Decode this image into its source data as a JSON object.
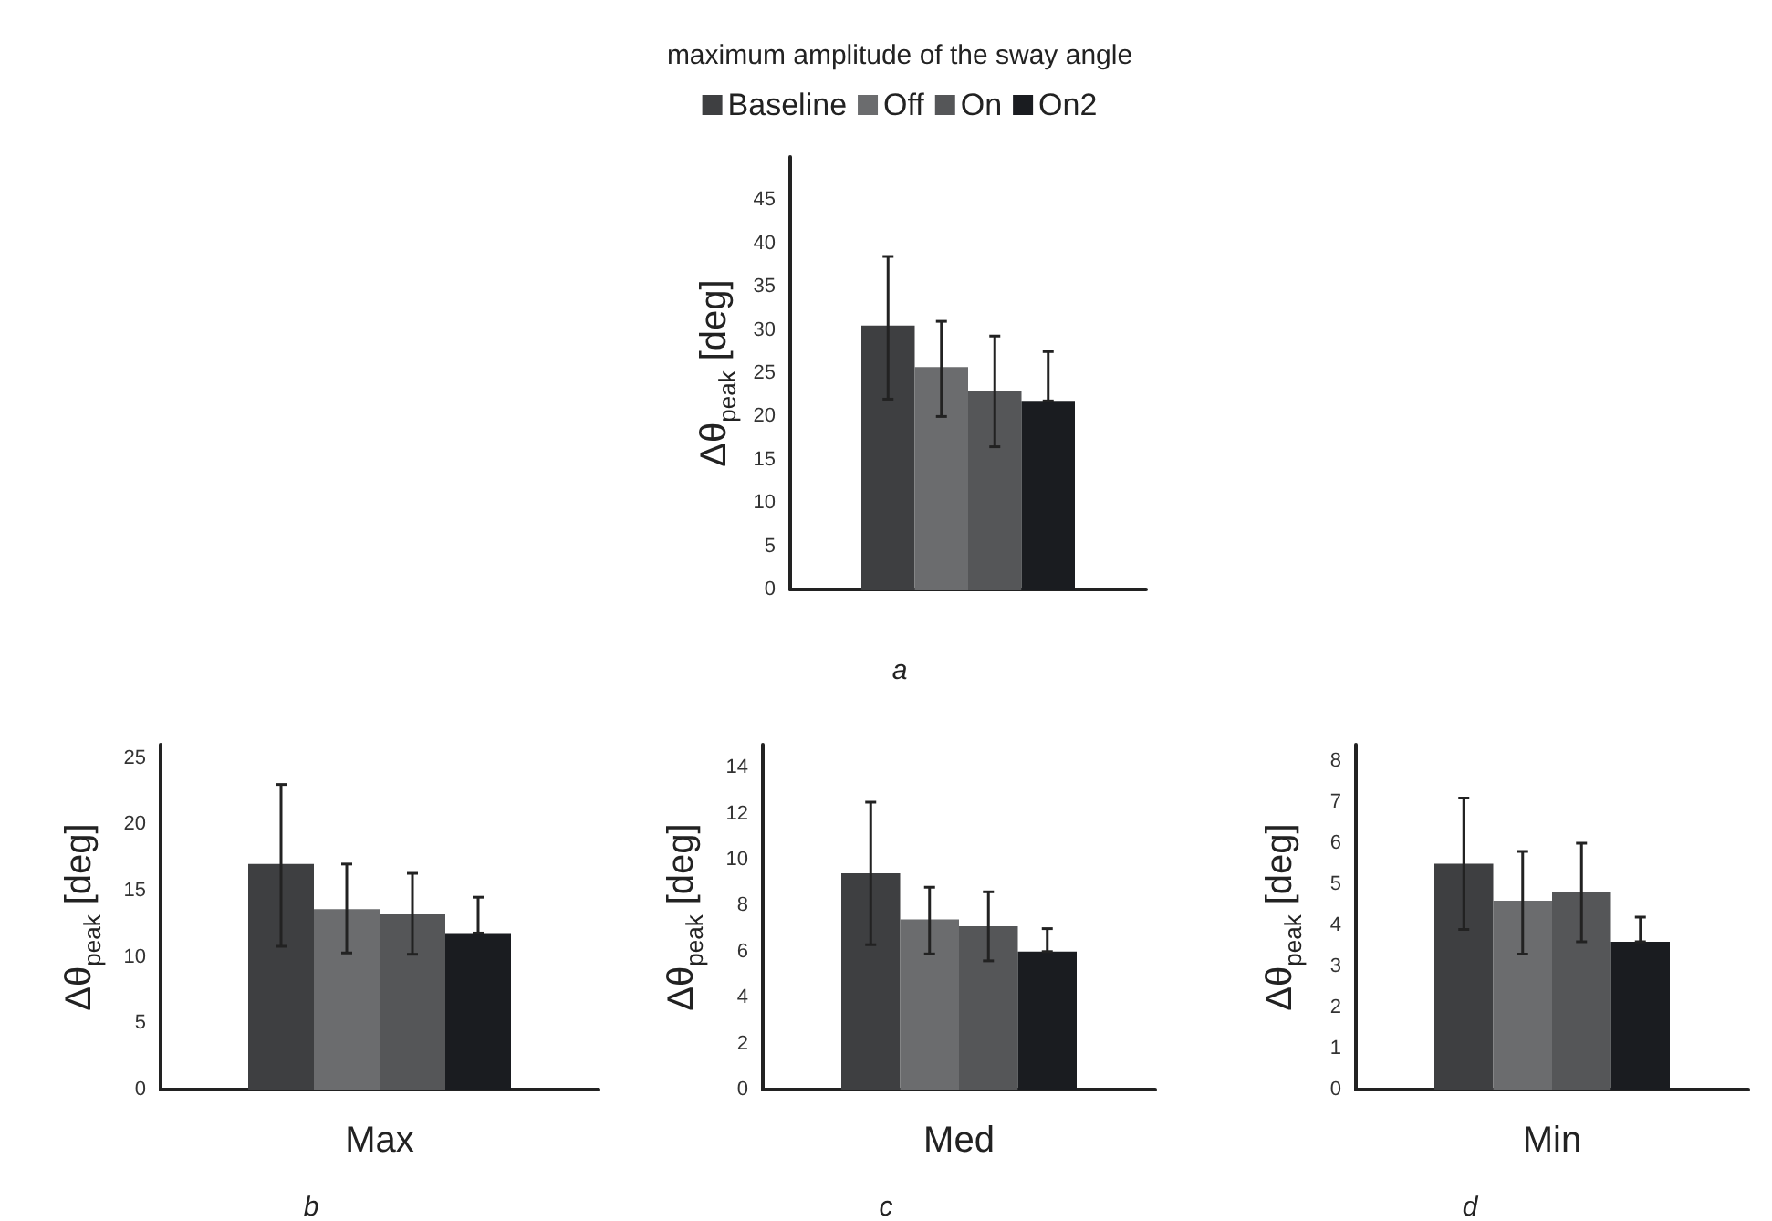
{
  "chart_data": [
    {
      "type": "bar",
      "title": "maximum amplitude of the sway angle",
      "ylabel": "Δθ$_{peak}$ [deg]",
      "categories": [
        null
      ],
      "legend": "top",
      "grid": false,
      "ylim": [
        0,
        50
      ],
      "yticks": [
        0,
        5,
        10,
        15,
        20,
        25,
        30,
        35,
        40,
        45
      ],
      "annotations": [
        "a"
      ],
      "series": [
        {
          "name": "Baseline",
          "color": "#3e3f41",
          "values": [
            30.5
          ],
          "errors": [
            [
              22,
              38.5
            ]
          ]
        },
        {
          "name": "Off",
          "color": "#6b6c6e",
          "values": [
            25.7
          ],
          "errors": [
            [
              20,
              31
            ]
          ]
        },
        {
          "name": "On",
          "color": "#555658",
          "values": [
            23
          ],
          "errors": [
            [
              16.5,
              29.3
            ]
          ]
        },
        {
          "name": "On2",
          "color": "#1a1c20",
          "values": [
            21.8
          ],
          "errors": [
            [
              21.8,
              27.5
            ]
          ]
        }
      ]
    },
    {
      "type": "bar",
      "ylabel": "Δθ$_{peak}$ [deg]",
      "categories": [
        "Max"
      ],
      "grid": false,
      "ylim": [
        0,
        26
      ],
      "yticks": [
        0,
        5,
        10,
        15,
        20,
        25
      ],
      "annotations": [
        "b"
      ],
      "series": [
        {
          "color": "#3e3f41",
          "values": [
            17
          ],
          "errors": [
            [
              10.8,
              23
            ]
          ]
        },
        {
          "color": "#6b6c6e",
          "values": [
            13.6
          ],
          "errors": [
            [
              10.3,
              17
            ]
          ]
        },
        {
          "color": "#555658",
          "values": [
            13.2
          ],
          "errors": [
            [
              10.2,
              16.3
            ]
          ]
        },
        {
          "color": "#1a1c20",
          "values": [
            11.8
          ],
          "errors": [
            [
              11.8,
              14.5
            ]
          ]
        }
      ]
    },
    {
      "type": "bar",
      "ylabel": "Δθ$_{peak}$ [deg]",
      "categories": [
        "Med"
      ],
      "grid": false,
      "ylim": [
        0,
        15
      ],
      "yticks": [
        0,
        2,
        4,
        6,
        8,
        10,
        12,
        14
      ],
      "annotations": [
        "c"
      ],
      "series": [
        {
          "color": "#3e3f41",
          "values": [
            9.4
          ],
          "errors": [
            [
              6.3,
              12.5
            ]
          ]
        },
        {
          "color": "#6b6c6e",
          "values": [
            7.4
          ],
          "errors": [
            [
              5.9,
              8.8
            ]
          ]
        },
        {
          "color": "#555658",
          "values": [
            7.1
          ],
          "errors": [
            [
              5.6,
              8.6
            ]
          ]
        },
        {
          "color": "#1a1c20",
          "values": [
            6
          ],
          "errors": [
            [
              6,
              7
            ]
          ]
        }
      ]
    },
    {
      "type": "bar",
      "ylabel": "Δθ$_{peak}$ [deg]",
      "categories": [
        "Min"
      ],
      "grid": false,
      "ylim": [
        0,
        8.4
      ],
      "yticks": [
        0,
        1,
        2,
        3,
        4,
        5,
        6,
        7,
        8
      ],
      "annotations": [
        "d"
      ],
      "series": [
        {
          "color": "#3e3f41",
          "values": [
            5.5
          ],
          "errors": [
            [
              3.9,
              7.1
            ]
          ]
        },
        {
          "color": "#6b6c6e",
          "values": [
            4.6
          ],
          "errors": [
            [
              3.3,
              5.8
            ]
          ]
        },
        {
          "color": "#555658",
          "values": [
            4.8
          ],
          "errors": [
            [
              3.6,
              6
            ]
          ]
        },
        {
          "color": "#1a1c20",
          "values": [
            3.6
          ],
          "errors": [
            [
              3.6,
              4.2
            ]
          ]
        }
      ]
    }
  ]
}
